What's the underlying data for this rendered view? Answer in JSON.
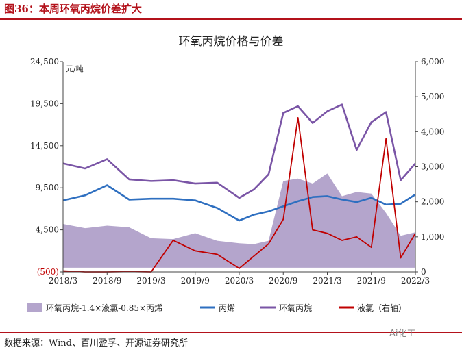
{
  "figure_title": "图36：本周环氧丙烷价差扩大",
  "source": "数据来源：Wind、百川盈孚、开源证券研究所",
  "watermark": "Ai化工",
  "colors": {
    "spread": "#b4a5cc",
    "propylene": "#2e6fc0",
    "po": "#7a55a6",
    "chlorine": "#c00000",
    "accent": "#b3121b"
  },
  "chart_data": {
    "type": "line",
    "title": "环氧丙烷价格与价差",
    "left_unit": "元/吨",
    "left_axis": {
      "ylim": [
        -500,
        24500
      ],
      "ticks": [
        -500,
        4500,
        9500,
        14500,
        19500,
        24500
      ],
      "tick_labels": [
        "(500)",
        "4,500",
        "9,500",
        "14,500",
        "19,500",
        "24,500"
      ]
    },
    "right_axis": {
      "ylim": [
        0,
        6000
      ],
      "ticks": [
        0,
        1000,
        2000,
        3000,
        4000,
        5000,
        6000
      ],
      "tick_labels": [
        "0",
        "1,000",
        "2,000",
        "3,000",
        "4,000",
        "5,000",
        "6,000"
      ]
    },
    "x_ticks": [
      "2018/3",
      "2018/9",
      "2019/3",
      "2019/9",
      "2020/3",
      "2020/9",
      "2021/3",
      "2021/9",
      "2022/3"
    ],
    "x": [
      "2018/3",
      "2018/6",
      "2018/9",
      "2018/12",
      "2019/3",
      "2019/6",
      "2019/9",
      "2019/12",
      "2020/3",
      "2020/5",
      "2020/7",
      "2020/9",
      "2020/11",
      "2021/1",
      "2021/3",
      "2021/5",
      "2021/7",
      "2021/9",
      "2021/11",
      "2022/1",
      "2022/3"
    ],
    "legend": [
      "环氧丙烷-1.4×液氯-0.85×丙烯",
      "丙烯",
      "环氧丙烷",
      "液氯（右轴）"
    ],
    "series": [
      {
        "name": "环氧丙烷-1.4×液氯-0.85×丙烯",
        "kind": "area",
        "axis": "left",
        "values": [
          5200,
          4700,
          5000,
          4800,
          3500,
          3400,
          4100,
          3200,
          2900,
          2800,
          3200,
          10300,
          10600,
          10000,
          11200,
          8500,
          9000,
          8800,
          6500,
          3800,
          4200
        ]
      },
      {
        "name": "丙烯",
        "kind": "line",
        "axis": "left",
        "values": [
          8000,
          8600,
          9800,
          8100,
          8200,
          8200,
          8000,
          7100,
          5600,
          6300,
          6700,
          7300,
          7900,
          8400,
          8500,
          8100,
          7800,
          8300,
          7500,
          7600,
          8700
        ]
      },
      {
        "name": "环氧丙烷",
        "kind": "line",
        "axis": "left",
        "values": [
          12400,
          11800,
          12900,
          10500,
          10300,
          10400,
          10000,
          10100,
          8300,
          9300,
          11100,
          18400,
          19200,
          17200,
          18600,
          19400,
          14000,
          17300,
          18500,
          10400,
          12400
        ]
      },
      {
        "name": "液氯（右轴）",
        "kind": "line",
        "axis": "right",
        "values": [
          30,
          0,
          0,
          10,
          0,
          900,
          600,
          500,
          100,
          450,
          800,
          1500,
          4400,
          1200,
          1100,
          900,
          1000,
          700,
          3800,
          400,
          1100
        ]
      }
    ]
  }
}
